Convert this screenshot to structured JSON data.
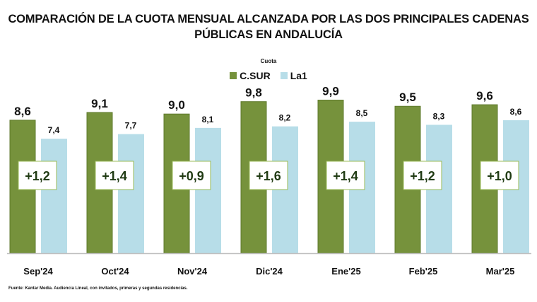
{
  "chart_data": {
    "type": "bar",
    "title": "COMPARACIÓN DE LA CUOTA MENSUAL ALCANZADA POR LAS DOS PRINCIPALES CADENAS PÚBLICAS EN ANDALUCÍA",
    "title_lines": [
      "COMPARACIÓN DE LA CUOTA MENSUAL ALCANZADA POR LAS DOS PRINCIPALES CADENAS",
      "PÚBLICAS EN ANDALUCÍA"
    ],
    "subtitle": "Cuota",
    "xlabel": "",
    "ylabel": "",
    "ylim": [
      0,
      10
    ],
    "grid": false,
    "legend_position": "top-center",
    "categories": [
      "Sep'24",
      "Oct'24",
      "Nov'24",
      "Dic'24",
      "Ene'25",
      "Feb'25",
      "Mar'25"
    ],
    "series": [
      {
        "name": "C.SUR",
        "color": "#76923c",
        "values": [
          8.6,
          9.1,
          9.0,
          9.8,
          9.9,
          9.5,
          9.6
        ],
        "labels": [
          "8,6",
          "9,1",
          "9,0",
          "9,8",
          "9,9",
          "9,5",
          "9,6"
        ]
      },
      {
        "name": "La1",
        "color": "#b7dde8",
        "values": [
          7.4,
          7.7,
          8.1,
          8.2,
          8.5,
          8.3,
          8.6
        ],
        "labels": [
          "7,4",
          "7,7",
          "8,1",
          "8,2",
          "8,5",
          "8,3",
          "8,6"
        ]
      }
    ],
    "annotations": {
      "differences": [
        1.2,
        1.4,
        0.9,
        1.6,
        1.4,
        1.2,
        1.0
      ],
      "difference_labels": [
        "+1,2",
        "+1,4",
        "+0,9",
        "+1,6",
        "+1,4",
        "+1,2",
        "+1,0"
      ],
      "box_border_color": "#9bbb59",
      "text_color": "#1f3a12"
    },
    "source": "Fuente: Kantar Media. Audiencia Lineal, con invitados, primeras y segundas residencias."
  }
}
